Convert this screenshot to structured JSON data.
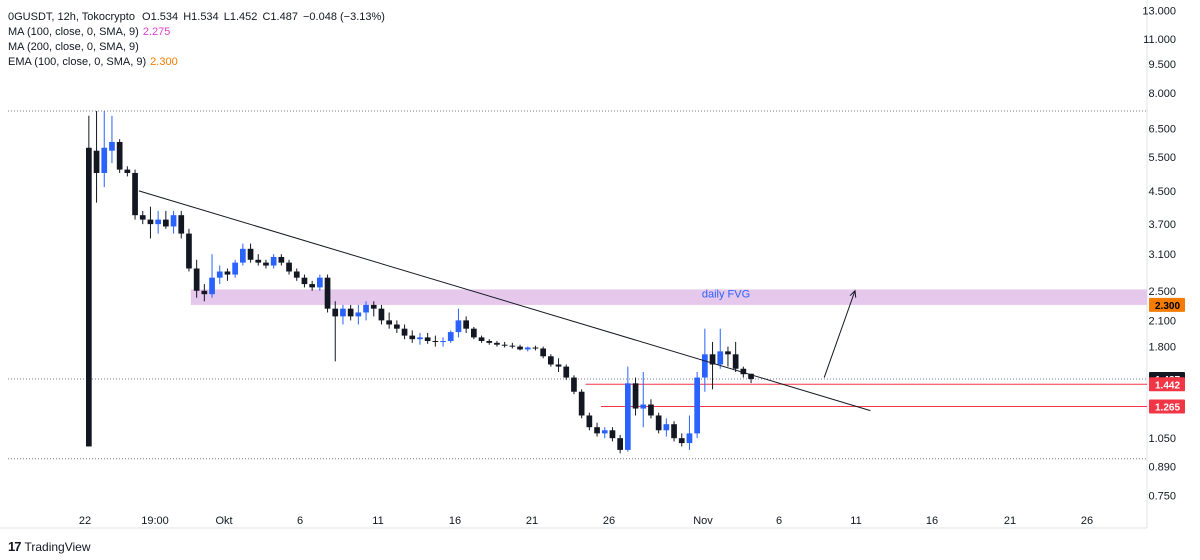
{
  "header": {
    "symbol": "0GUSDT, 12h, Tokocrypto",
    "open_label": "O",
    "open": "1.534",
    "high_label": "H",
    "high": "1.534",
    "low_label": "L",
    "low": "1.452",
    "close_label": "C",
    "close": "1.487",
    "change": "−0.048 (−3.13%)"
  },
  "indicators": [
    {
      "label": "MA (100, close, 0, SMA, 9)",
      "value": "2.275",
      "color": "#e040c8"
    },
    {
      "label": "MA (200, close, 0, SMA, 9)",
      "value": "",
      "color": "#131722"
    },
    {
      "label": "EMA (100, close, 0, SMA, 9)",
      "value": "2.300",
      "color": "#f57c00"
    }
  ],
  "branding": {
    "logo_text": "TradingView",
    "logo_mark": "17"
  },
  "chart_data": {
    "type": "candlestick",
    "y_scale": "log",
    "ylim": [
      0.68,
      13.2
    ],
    "y_ticks": [
      "13.000",
      "11.000",
      "9.500",
      "8.000",
      "6.500",
      "5.500",
      "4.500",
      "3.700",
      "3.100",
      "2.500",
      "2.100",
      "1.800",
      "1.050",
      "0.890",
      "0.750"
    ],
    "x_ticks": [
      "22",
      "19:00",
      "Okt",
      "6",
      "11",
      "16",
      "21",
      "26",
      "Nov",
      "6",
      "11",
      "16",
      "21",
      "26"
    ],
    "colors": {
      "up": "#2962ff",
      "down": "#131722",
      "fvg": "#e1bee7",
      "level": "#f23645",
      "trend": "#131722"
    },
    "candles": [
      [
        5.8,
        7.0,
        1.0,
        1.0
      ],
      [
        5.7,
        7.2,
        4.2,
        5.0
      ],
      [
        5.0,
        7.2,
        4.6,
        5.8
      ],
      [
        5.7,
        7.0,
        5.3,
        6.0
      ],
      [
        6.0,
        6.1,
        5.0,
        5.1
      ],
      [
        5.1,
        5.2,
        4.9,
        5.0
      ],
      [
        5.0,
        5.1,
        3.8,
        3.9
      ],
      [
        3.9,
        4.0,
        3.7,
        3.8
      ],
      [
        3.8,
        4.1,
        3.4,
        3.7
      ],
      [
        3.7,
        4.0,
        3.5,
        3.8
      ],
      [
        3.8,
        4.0,
        3.6,
        3.65
      ],
      [
        3.65,
        4.0,
        3.5,
        3.9
      ],
      [
        3.9,
        4.0,
        3.4,
        3.5
      ],
      [
        3.5,
        3.6,
        2.8,
        2.85
      ],
      [
        2.85,
        3.0,
        2.4,
        2.5
      ],
      [
        2.5,
        2.6,
        2.35,
        2.45
      ],
      [
        2.45,
        3.1,
        2.4,
        2.7
      ],
      [
        2.7,
        2.9,
        2.6,
        2.8
      ],
      [
        2.8,
        2.85,
        2.65,
        2.75
      ],
      [
        2.75,
        3.0,
        2.7,
        2.95
      ],
      [
        2.95,
        3.3,
        2.9,
        3.2
      ],
      [
        3.2,
        3.3,
        2.95,
        3.0
      ],
      [
        3.0,
        3.1,
        2.9,
        2.95
      ],
      [
        2.95,
        3.0,
        2.85,
        2.9
      ],
      [
        2.9,
        3.1,
        2.85,
        3.05
      ],
      [
        3.05,
        3.1,
        2.9,
        2.95
      ],
      [
        2.95,
        3.0,
        2.75,
        2.8
      ],
      [
        2.8,
        2.85,
        2.65,
        2.7
      ],
      [
        2.7,
        2.75,
        2.55,
        2.6
      ],
      [
        2.6,
        2.65,
        2.5,
        2.55
      ],
      [
        2.55,
        2.75,
        2.5,
        2.7
      ],
      [
        2.7,
        2.75,
        2.2,
        2.25
      ],
      [
        2.25,
        2.35,
        1.65,
        2.15
      ],
      [
        2.15,
        2.3,
        2.05,
        2.25
      ],
      [
        2.25,
        2.3,
        2.1,
        2.15
      ],
      [
        2.15,
        2.3,
        2.05,
        2.2
      ],
      [
        2.2,
        2.35,
        2.1,
        2.3
      ],
      [
        2.3,
        2.35,
        2.15,
        2.25
      ],
      [
        2.25,
        2.3,
        2.05,
        2.1
      ],
      [
        2.1,
        2.2,
        2.0,
        2.05
      ],
      [
        2.05,
        2.1,
        1.95,
        2.0
      ],
      [
        2.0,
        2.05,
        1.88,
        1.92
      ],
      [
        1.92,
        1.98,
        1.84,
        1.88
      ],
      [
        1.88,
        1.95,
        1.82,
        1.9
      ],
      [
        1.9,
        1.95,
        1.83,
        1.86
      ],
      [
        1.86,
        1.92,
        1.8,
        1.85
      ],
      [
        1.85,
        1.9,
        1.8,
        1.86
      ],
      [
        1.86,
        1.98,
        1.84,
        1.96
      ],
      [
        1.96,
        2.25,
        1.9,
        2.1
      ],
      [
        2.1,
        2.15,
        1.95,
        2.0
      ],
      [
        2.0,
        2.02,
        1.88,
        1.9
      ],
      [
        1.9,
        1.92,
        1.84,
        1.86
      ],
      [
        1.86,
        1.88,
        1.82,
        1.84
      ],
      [
        1.84,
        1.86,
        1.8,
        1.82
      ],
      [
        1.82,
        1.85,
        1.79,
        1.81
      ],
      [
        1.81,
        1.84,
        1.78,
        1.8
      ],
      [
        1.8,
        1.82,
        1.76,
        1.77
      ],
      [
        1.77,
        1.8,
        1.75,
        1.79
      ],
      [
        1.79,
        1.81,
        1.76,
        1.78
      ],
      [
        1.78,
        1.8,
        1.68,
        1.7
      ],
      [
        1.7,
        1.72,
        1.6,
        1.62
      ],
      [
        1.62,
        1.68,
        1.55,
        1.6
      ],
      [
        1.6,
        1.62,
        1.48,
        1.5
      ],
      [
        1.5,
        1.52,
        1.36,
        1.38
      ],
      [
        1.38,
        1.4,
        1.18,
        1.2
      ],
      [
        1.2,
        1.22,
        1.1,
        1.12
      ],
      [
        1.12,
        1.15,
        1.06,
        1.08
      ],
      [
        1.08,
        1.12,
        1.05,
        1.1
      ],
      [
        1.1,
        1.12,
        1.03,
        1.05
      ],
      [
        1.05,
        1.07,
        0.96,
        0.98
      ],
      [
        0.98,
        1.6,
        0.97,
        1.45
      ],
      [
        1.45,
        1.5,
        1.2,
        1.25
      ],
      [
        1.25,
        1.55,
        1.12,
        1.28
      ],
      [
        1.28,
        1.32,
        1.18,
        1.2
      ],
      [
        1.2,
        1.22,
        1.08,
        1.1
      ],
      [
        1.1,
        1.18,
        1.06,
        1.14
      ],
      [
        1.14,
        1.16,
        1.03,
        1.05
      ],
      [
        1.05,
        1.08,
        1.0,
        1.02
      ],
      [
        1.02,
        1.2,
        0.98,
        1.08
      ],
      [
        1.08,
        1.55,
        1.05,
        1.5
      ],
      [
        1.5,
        2.0,
        1.38,
        1.72
      ],
      [
        1.72,
        1.85,
        1.4,
        1.62
      ],
      [
        1.62,
        2.0,
        1.58,
        1.75
      ],
      [
        1.75,
        1.8,
        1.6,
        1.72
      ],
      [
        1.72,
        1.85,
        1.55,
        1.58
      ],
      [
        1.58,
        1.6,
        1.5,
        1.53
      ],
      [
        1.534,
        1.534,
        1.452,
        1.487
      ]
    ],
    "fvg": {
      "label": "daily FVG",
      "low": 2.3,
      "high": 2.52,
      "from": 14,
      "to": 999
    },
    "trendline": {
      "from": [
        7,
        4.5
      ],
      "to": [
        102,
        1.235
      ]
    },
    "arrow": {
      "from": [
        96,
        1.5
      ],
      "to": [
        100,
        2.5
      ]
    },
    "levels": [
      {
        "value": 1.442,
        "from": 65,
        "label": "1.442"
      },
      {
        "value": 1.265,
        "from": 67,
        "label": "1.265"
      }
    ],
    "price_tags": [
      {
        "value": 2.3,
        "label": "2.300",
        "bg": "#f57c00",
        "fg": "#000000"
      },
      {
        "value": 1.487,
        "label": "1.487",
        "bg": "#131722",
        "fg": "#ffffff"
      },
      {
        "value": 1.442,
        "label": "1.442",
        "bg": "#f23645",
        "fg": "#ffffff"
      },
      {
        "value": 1.265,
        "label": "1.265",
        "bg": "#f23645",
        "fg": "#ffffff"
      }
    ],
    "dotted_levels": [
      7.2,
      1.487,
      0.93
    ]
  }
}
